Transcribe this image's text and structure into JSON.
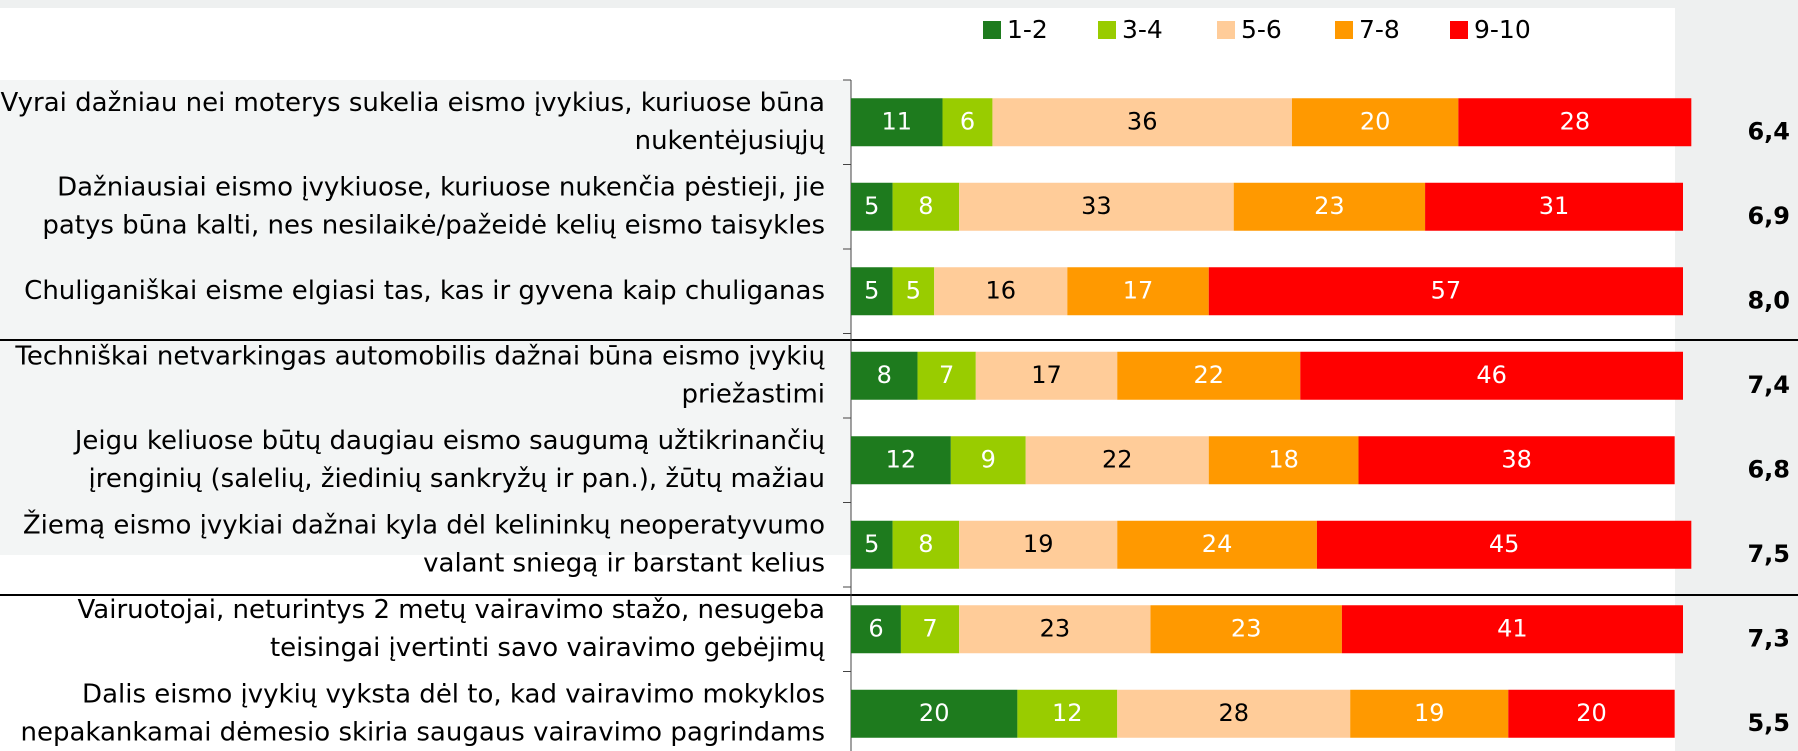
{
  "chart_data": {
    "type": "stacked_bar_horizontal",
    "categories": [
      [
        "Vyrai dažniau nei moterys sukelia eismo įvykius, kuriuose būna",
        "nukentėjusiųjų"
      ],
      [
        "Dažniausiai eismo įvykiuose, kuriuose nukenčia pėstieji, jie",
        "patys būna kalti, nes nesilaikė/pažeidė kelių eismo taisykles"
      ],
      [
        "Chuliganiškai eisme elgiasi tas, kas ir gyvena kaip chuliganas"
      ],
      [
        "Techniškai netvarkingas automobilis  dažnai būna eismo įvykių",
        "priežastimi"
      ],
      [
        "Jeigu keliuose būtų daugiau eismo saugumą užtikrinančių",
        "įrenginių (salelių, žiedinių sankryžų ir pan.), žūtų mažiau"
      ],
      [
        "Žiemą eismo įvykiai  dažnai kyla dėl kelininkų neoperatyvumo",
        "valant sniegą ir barstant kelius"
      ],
      [
        "Vairuotojai, neturintys 2 metų vairavimo stažo, nesugeba",
        "teisingai įvertinti savo vairavimo gebėjimų"
      ],
      [
        "Dalis eismo įvykių vyksta dėl to, kad vairavimo mokyklos",
        "nepakankamai dėmesio skiria saugaus vairavimo pagrindams"
      ]
    ],
    "series": [
      {
        "name": "1-2",
        "color": "#1e7b1e",
        "label_color": "#ffffff",
        "values": [
          11,
          5,
          5,
          8,
          12,
          5,
          6,
          20
        ]
      },
      {
        "name": "3-4",
        "color": "#99cc00",
        "label_color": "#ffffff",
        "values": [
          6,
          8,
          5,
          7,
          9,
          8,
          7,
          12
        ]
      },
      {
        "name": "5-6",
        "color": "#ffcc99",
        "label_color": "#000000",
        "values": [
          36,
          33,
          16,
          17,
          22,
          19,
          23,
          28
        ]
      },
      {
        "name": "7-8",
        "color": "#ff9900",
        "label_color": "#ffffff",
        "values": [
          20,
          23,
          17,
          22,
          18,
          24,
          23,
          19
        ]
      },
      {
        "name": "9-10",
        "color": "#ff0000",
        "label_color": "#ffffff",
        "values": [
          28,
          31,
          57,
          46,
          38,
          45,
          41,
          20
        ]
      }
    ],
    "scores": [
      "6,4",
      "6,9",
      "8,0",
      "7,4",
      "6,8",
      "7,5",
      "7,3",
      "5,5"
    ],
    "xlim": [
      0,
      100
    ]
  }
}
